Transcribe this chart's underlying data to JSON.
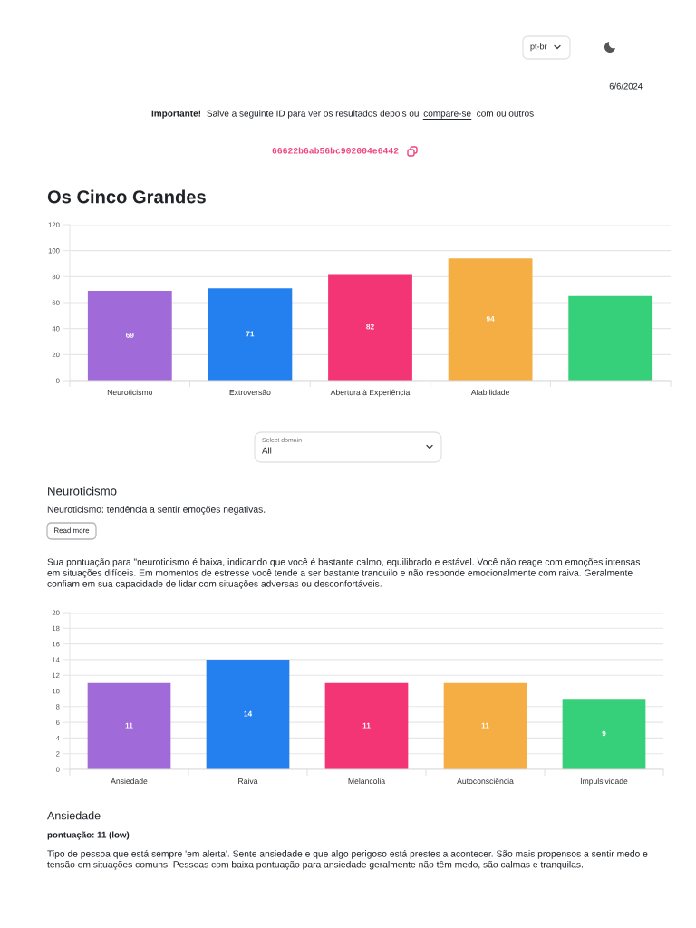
{
  "chart_data": [
    {
      "type": "bar",
      "title": "Os Cinco Grandes",
      "categories": [
        "Neuroticismo",
        "Extroversão",
        "Abertura à Experiência",
        "Afabilidade",
        null
      ],
      "values": [
        69,
        71,
        82,
        94,
        65
      ],
      "colors": [
        "#a06bd8",
        "#2580ef",
        "#f43575",
        "#f5ae44",
        "#36cf7a"
      ],
      "value_labels": [
        "69",
        "71",
        "82",
        "94",
        null
      ],
      "ylim": [
        0,
        120
      ],
      "yticks": [
        0,
        20,
        40,
        60,
        80,
        100,
        120
      ],
      "grid": "y",
      "annotations": [
        "pt-br",
        "6/6/2024",
        "Importante!",
        "Salve a seguinte ID para ver os resultados depois ou",
        "compare-se",
        "com ou outros",
        "66622b6ab56bc902004e6442",
        "Select domain",
        "All"
      ]
    },
    {
      "type": "bar",
      "title": "Neuroticismo",
      "subtitle": "Neuroticismo: tendência a sentir emoções negativas.",
      "categories": [
        "Ansiedade",
        "Raiva",
        "Melancolia",
        "Autoconsciência",
        "Impulsividade"
      ],
      "values": [
        11,
        14,
        11,
        11,
        9
      ],
      "colors": [
        "#a06bd8",
        "#2580ef",
        "#f43575",
        "#f5ae44",
        "#36cf7a"
      ],
      "data_labels": true,
      "ylim": [
        0,
        20
      ],
      "yticks": [
        0,
        2,
        4,
        6,
        8,
        10,
        12,
        14,
        16,
        18,
        20
      ],
      "grid": "y",
      "annotations": [
        "Read more",
        "Sua pontuação para \"neuroticismo é baixa, indicando que você é bastante calmo, equilibrado e estável. Você não reage com emoções intensas em situações difíceis. Em momentos de estresse você tende a ser bastante tranquilo e não responde emocionalmente com raiva. Geralmente confiam em sua capacidade de lidar com situações adversas ou desconfortáveis.",
        "Ansiedade",
        "pontuação: 11 (low)",
        "Tipo de pessoa que está sempre 'em alerta'. Sente ansiedade e que algo perigoso está prestes a acontecer. São mais propensos a sentir medo e tensão em situações comuns. Pessoas com baixa pontuação para ansiedade geralmente não têm medo, são calmas e tranquilas."
      ]
    }
  ]
}
